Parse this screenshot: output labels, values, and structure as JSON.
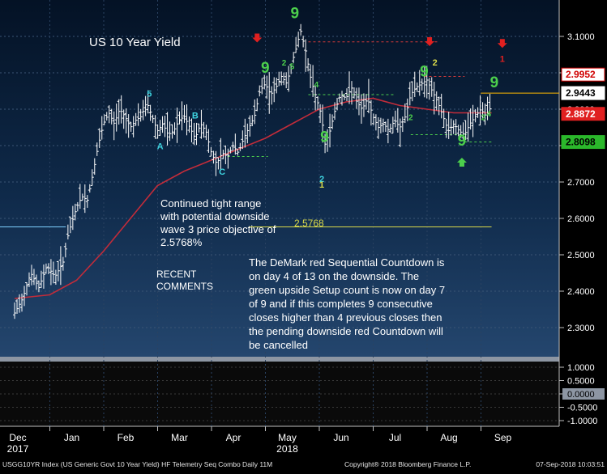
{
  "chart_data": {
    "type": "candlestick",
    "title": "US 10 Year Yield",
    "footer": {
      "left": "USGG10YR Index (US Generic Govt 10 Year Yield) HF Telemetry Seq Combo  Daily 11M",
      "center": "Copyright® 2018 Bloomberg Finance L.P.",
      "right": "07-Sep-2018 10:03:51"
    },
    "ylim": [
      2.22,
      3.2
    ],
    "y_ticks": [
      "3.1000",
      "3.0000",
      "2.9000",
      "2.8000",
      "2.7000",
      "2.6000",
      "2.5000",
      "2.4000",
      "2.3000"
    ],
    "x_ticks": [
      {
        "label": "Dec",
        "sub": "2017",
        "pos": 0.0
      },
      {
        "label": "Jan",
        "sub": "",
        "pos": 1.0
      },
      {
        "label": "Feb",
        "sub": "",
        "pos": 2.0
      },
      {
        "label": "Mar",
        "sub": "",
        "pos": 3.0
      },
      {
        "label": "Apr",
        "sub": "",
        "pos": 4.0
      },
      {
        "label": "May",
        "sub": "2018",
        "pos": 5.0
      },
      {
        "label": "Jun",
        "sub": "",
        "pos": 6.0
      },
      {
        "label": "Jul",
        "sub": "",
        "pos": 7.0
      },
      {
        "label": "Aug",
        "sub": "",
        "pos": 8.0
      },
      {
        "label": "Sep",
        "sub": "",
        "pos": 9.0
      }
    ],
    "price_points": [
      [
        -0.15,
        2.34
      ],
      [
        0.0,
        2.38
      ],
      [
        0.15,
        2.45
      ],
      [
        0.3,
        2.41
      ],
      [
        0.45,
        2.47
      ],
      [
        0.6,
        2.44
      ],
      [
        0.75,
        2.48
      ],
      [
        0.85,
        2.56
      ],
      [
        1.0,
        2.63
      ],
      [
        1.1,
        2.66
      ],
      [
        1.2,
        2.65
      ],
      [
        1.3,
        2.72
      ],
      [
        1.4,
        2.8
      ],
      [
        1.5,
        2.86
      ],
      [
        1.6,
        2.89
      ],
      [
        1.7,
        2.86
      ],
      [
        1.8,
        2.9
      ],
      [
        1.9,
        2.88
      ],
      [
        2.0,
        2.85
      ],
      [
        2.1,
        2.87
      ],
      [
        2.2,
        2.88
      ],
      [
        2.3,
        2.92
      ],
      [
        2.4,
        2.88
      ],
      [
        2.5,
        2.84
      ],
      [
        2.6,
        2.86
      ],
      [
        2.7,
        2.83
      ],
      [
        2.8,
        2.84
      ],
      [
        2.9,
        2.87
      ],
      [
        3.0,
        2.88
      ],
      [
        3.1,
        2.85
      ],
      [
        3.2,
        2.82
      ],
      [
        3.3,
        2.86
      ],
      [
        3.4,
        2.84
      ],
      [
        3.5,
        2.78
      ],
      [
        3.6,
        2.75
      ],
      [
        3.7,
        2.78
      ],
      [
        3.8,
        2.77
      ],
      [
        3.9,
        2.8
      ],
      [
        4.0,
        2.78
      ],
      [
        4.1,
        2.82
      ],
      [
        4.2,
        2.85
      ],
      [
        4.3,
        2.88
      ],
      [
        4.4,
        2.95
      ],
      [
        4.5,
        2.97
      ],
      [
        4.6,
        2.94
      ],
      [
        4.7,
        2.96
      ],
      [
        4.8,
        2.99
      ],
      [
        4.9,
        2.97
      ],
      [
        5.0,
        3.03
      ],
      [
        5.1,
        3.08
      ],
      [
        5.15,
        3.12
      ],
      [
        5.25,
        3.06
      ],
      [
        5.35,
        2.98
      ],
      [
        5.45,
        2.93
      ],
      [
        5.55,
        2.88
      ],
      [
        5.6,
        2.8
      ],
      [
        5.7,
        2.84
      ],
      [
        5.8,
        2.9
      ],
      [
        5.9,
        2.94
      ],
      [
        6.0,
        2.93
      ],
      [
        6.1,
        2.96
      ],
      [
        6.2,
        2.92
      ],
      [
        6.3,
        2.9
      ],
      [
        6.4,
        2.93
      ],
      [
        6.5,
        2.88
      ],
      [
        6.6,
        2.85
      ],
      [
        6.7,
        2.86
      ],
      [
        6.8,
        2.84
      ],
      [
        6.9,
        2.87
      ],
      [
        7.0,
        2.85
      ],
      [
        7.1,
        2.88
      ],
      [
        7.2,
        2.94
      ],
      [
        7.3,
        2.96
      ],
      [
        7.4,
        2.97
      ],
      [
        7.5,
        2.98
      ],
      [
        7.6,
        2.95
      ],
      [
        7.7,
        2.92
      ],
      [
        7.8,
        2.88
      ],
      [
        7.9,
        2.84
      ],
      [
        8.0,
        2.86
      ],
      [
        8.1,
        2.84
      ],
      [
        8.2,
        2.83
      ],
      [
        8.3,
        2.86
      ],
      [
        8.4,
        2.88
      ],
      [
        8.5,
        2.9
      ],
      [
        8.6,
        2.88
      ],
      [
        8.7,
        2.91
      ]
    ],
    "moving_average_points": [
      [
        -0.15,
        2.38
      ],
      [
        0.5,
        2.39
      ],
      [
        1.0,
        2.43
      ],
      [
        1.5,
        2.51
      ],
      [
        2.0,
        2.6
      ],
      [
        2.5,
        2.69
      ],
      [
        3.0,
        2.73
      ],
      [
        3.5,
        2.76
      ],
      [
        4.0,
        2.79
      ],
      [
        4.5,
        2.82
      ],
      [
        5.0,
        2.86
      ],
      [
        5.5,
        2.9
      ],
      [
        6.0,
        2.92
      ],
      [
        6.5,
        2.93
      ],
      [
        7.0,
        2.91
      ],
      [
        7.5,
        2.9
      ],
      [
        8.0,
        2.89
      ],
      [
        8.5,
        2.89
      ],
      [
        8.7,
        2.89
      ]
    ],
    "reference_lines": [
      {
        "y": 2.5768,
        "x0": 4.2,
        "x1": 8.7,
        "color": "#d9d94a",
        "style": "solid"
      },
      {
        "y": 3.085,
        "x0": 5.3,
        "x1": 7.7,
        "color": "#d43a3a",
        "style": "dashed"
      },
      {
        "y": 2.99,
        "x0": 7.45,
        "x1": 8.2,
        "color": "#d43a3a",
        "style": "dashed"
      },
      {
        "y": 2.94,
        "x0": 5.3,
        "x1": 6.9,
        "color": "#4ccf4c",
        "style": "dashed"
      },
      {
        "y": 2.77,
        "x0": 3.8,
        "x1": 4.55,
        "color": "#4ccf4c",
        "style": "dashed"
      },
      {
        "y": 2.83,
        "x0": 7.2,
        "x1": 8.25,
        "color": "#4ccf4c",
        "style": "dashed"
      },
      {
        "y": 2.81,
        "x0": 8.2,
        "x1": 8.7,
        "color": "#4ccf4c",
        "style": "dashed"
      },
      {
        "y": 2.5768,
        "x0": -1.0,
        "x1": 0.8,
        "color": "#7fd0ff",
        "style": "solid"
      }
    ],
    "price_labels": [
      {
        "value": "2.9952",
        "y": 2.9952,
        "bg": "#ffffff",
        "fg": "#d00000",
        "border": "#d00000"
      },
      {
        "value": "2.9443",
        "y": 2.9443,
        "bg": "#ffffff",
        "fg": "#000000",
        "border": "#ffffff"
      },
      {
        "value": "2.8872",
        "y": 2.8872,
        "bg": "#e02020",
        "fg": "#ffffff",
        "border": "#e02020"
      },
      {
        "value": "2.8098",
        "y": 2.8098,
        "bg": "#2bb82b",
        "fg": "#000000",
        "border": "#2bb82b"
      }
    ],
    "oscillator": {
      "ticks": [
        "1.0000",
        "0.5000",
        "0.0000",
        "-0.5000",
        "-1.0000"
      ],
      "ylim": [
        -1.2,
        1.2
      ],
      "current_label": "0.0000"
    },
    "markers": [
      {
        "text": "9",
        "x": 4.5,
        "y": 3.0,
        "color": "#4ccf4c",
        "size": 19
      },
      {
        "text": "9",
        "x": 5.05,
        "y": 3.15,
        "color": "#4ccf4c",
        "size": 19
      },
      {
        "text": "9",
        "x": 5.6,
        "y": 2.81,
        "color": "#4ccf4c",
        "size": 19
      },
      {
        "text": "9",
        "x": 7.45,
        "y": 2.99,
        "color": "#4ccf4c",
        "size": 19
      },
      {
        "text": "9",
        "x": 8.15,
        "y": 2.8,
        "color": "#4ccf4c",
        "size": 19
      },
      {
        "text": "9",
        "x": 8.75,
        "y": 2.96,
        "color": "#4ccf4c",
        "size": 19
      },
      {
        "text": "5",
        "x": 2.35,
        "y": 2.935,
        "color": "#3fd4e0",
        "size": 11
      },
      {
        "text": "B",
        "x": 3.2,
        "y": 2.875,
        "color": "#3fd4e0",
        "size": 11
      },
      {
        "text": "A",
        "x": 2.55,
        "y": 2.79,
        "color": "#3fd4e0",
        "size": 11
      },
      {
        "text": "C",
        "x": 3.7,
        "y": 2.72,
        "color": "#3fd4e0",
        "size": 11
      },
      {
        "text": "2",
        "x": 5.55,
        "y": 2.7,
        "color": "#3fd4e0",
        "size": 11
      },
      {
        "text": "1",
        "x": 5.55,
        "y": 2.685,
        "color": "#d9d94a",
        "size": 11
      },
      {
        "text": "2",
        "x": 7.65,
        "y": 3.02,
        "color": "#d9d94a",
        "size": 11
      },
      {
        "text": "1",
        "x": 8.9,
        "y": 3.03,
        "color": "#e02020",
        "size": 11
      },
      {
        "text": "2",
        "x": 4.85,
        "y": 3.02,
        "color": "#4ccf4c",
        "size": 10
      },
      {
        "text": "5",
        "x": 5.0,
        "y": 3.01,
        "color": "#4ccf4c",
        "size": 10
      },
      {
        "text": "4",
        "x": 5.45,
        "y": 2.96,
        "color": "#4ccf4c",
        "size": 10
      },
      {
        "text": "2",
        "x": 7.2,
        "y": 2.87,
        "color": "#4ccf4c",
        "size": 10
      },
      {
        "text": "2",
        "x": 8.55,
        "y": 2.87,
        "color": "#4ccf4c",
        "size": 10
      },
      {
        "text": "4",
        "x": 8.65,
        "y": 2.88,
        "color": "#4ccf4c",
        "size": 10
      }
    ],
    "arrows": [
      {
        "dir": "down",
        "x": 4.35,
        "y": 3.09,
        "color": "#e02020"
      },
      {
        "dir": "down",
        "x": 7.55,
        "y": 3.08,
        "color": "#e02020"
      },
      {
        "dir": "down",
        "x": 8.9,
        "y": 3.075,
        "color": "#e02020"
      },
      {
        "dir": "up",
        "x": 8.15,
        "y": 2.76,
        "color": "#4ccf4c"
      }
    ],
    "annotations": {
      "wave_text": [
        "Continued tight range",
        "with potential downside",
        "wave 3 price objective of",
        "2.5768%"
      ],
      "level_label": "2.5768",
      "recent_comments": [
        "RECENT",
        "COMMENTS"
      ],
      "comment_text": [
        "The DeMark red Sequential Countdown is",
        "on day 4 of 13 on the downside.  The",
        "green upside Setup count is now on day 7",
        "of 9 and if this completes 9 consecutive",
        "closes higher than 4 previous closes then",
        "the pending downside red Countdown will",
        "be cancelled"
      ]
    }
  }
}
